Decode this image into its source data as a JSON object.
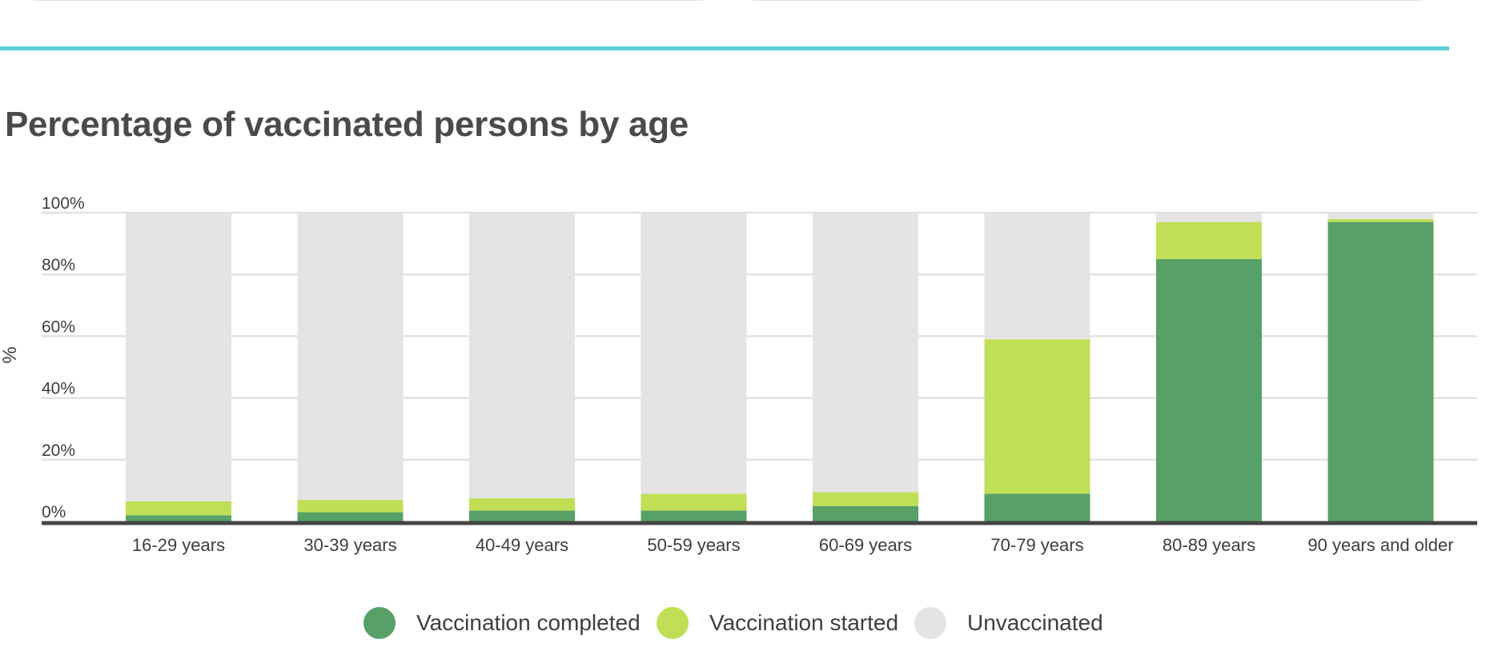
{
  "chart_data": {
    "type": "bar",
    "stacked": true,
    "title": "Percentage of vaccinated persons by age",
    "ylabel": "%",
    "xlabel": "",
    "ylim": [
      0,
      100
    ],
    "yticks": [
      "0%",
      "20%",
      "40%",
      "60%",
      "80%",
      "100%"
    ],
    "ytick_values": [
      0,
      20,
      40,
      60,
      80,
      100
    ],
    "grid": true,
    "legend_position": "bottom-center",
    "categories": [
      "16-29 years",
      "30-39 years",
      "40-49 years",
      "50-59 years",
      "60-69 years",
      "70-79 years",
      "80-89 years",
      "90 years and older"
    ],
    "series": [
      {
        "name": "Vaccination completed",
        "color": "#57a067",
        "values": [
          2,
          3,
          3.5,
          3.5,
          5,
          9,
          85,
          97
        ]
      },
      {
        "name": "Vaccination started",
        "color": "#c0df56",
        "values": [
          4.5,
          4,
          4,
          5.5,
          4.5,
          50,
          12,
          1
        ]
      },
      {
        "name": "Unvaccinated",
        "color": "#e4e4e4",
        "values": [
          93.5,
          93,
          92.5,
          91,
          90.5,
          41,
          3,
          2
        ]
      }
    ]
  }
}
